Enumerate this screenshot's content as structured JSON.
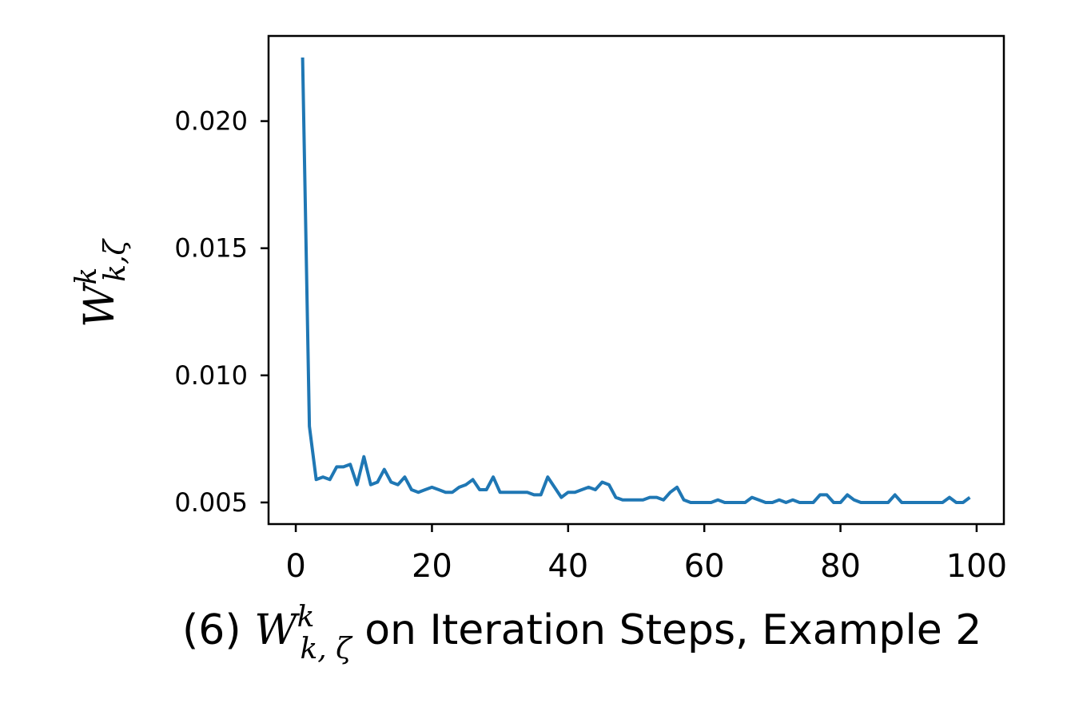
{
  "chart_data": {
    "type": "line",
    "ylabel": {
      "base": "W",
      "sup": "k",
      "sub": "k,ζ"
    },
    "caption": {
      "prefix": "(6) ",
      "math_base": "W",
      "math_sup": "k",
      "math_sub": "k, ζ",
      "suffix": " on Iteration Steps, Example 2"
    },
    "xlim": [
      -4,
      104
    ],
    "ylim": [
      0.00415,
      0.02335
    ],
    "xticks": [
      0,
      20,
      40,
      60,
      80,
      100
    ],
    "xtick_labels": [
      "0",
      "20",
      "40",
      "60",
      "80",
      "100"
    ],
    "yticks": [
      0.005,
      0.01,
      0.015,
      0.02
    ],
    "ytick_labels": [
      "0.005",
      "0.010",
      "0.015",
      "0.020"
    ],
    "grid": false,
    "color": "#1f77b4",
    "series": [
      {
        "x": [
          1,
          2,
          3,
          4,
          5,
          6,
          7,
          8,
          9,
          10,
          11,
          12,
          13,
          14,
          15,
          16,
          17,
          18,
          19,
          20,
          21,
          22,
          23,
          24,
          25,
          26,
          27,
          28,
          29,
          30,
          31,
          32,
          33,
          34,
          35,
          36,
          37,
          38,
          39,
          40,
          41,
          42,
          43,
          44,
          45,
          46,
          47,
          48,
          49,
          50,
          51,
          52,
          53,
          54,
          55,
          56,
          57,
          58,
          59,
          60,
          61,
          62,
          63,
          64,
          65,
          66,
          67,
          68,
          69,
          70,
          71,
          72,
          73,
          74,
          75,
          76,
          77,
          78,
          79,
          80,
          81,
          82,
          83,
          84,
          85,
          86,
          87,
          88,
          89,
          90,
          91,
          92,
          93,
          94,
          95,
          96,
          97,
          98,
          99
        ],
        "y": [
          0.0225,
          0.008,
          0.0059,
          0.006,
          0.0059,
          0.0064,
          0.0064,
          0.0065,
          0.0057,
          0.0068,
          0.0057,
          0.0058,
          0.0063,
          0.0058,
          0.0057,
          0.006,
          0.0055,
          0.0054,
          0.0055,
          0.0056,
          0.0055,
          0.0054,
          0.0054,
          0.0056,
          0.0057,
          0.0059,
          0.0055,
          0.0055,
          0.006,
          0.0054,
          0.0054,
          0.0054,
          0.0054,
          0.0054,
          0.0053,
          0.0053,
          0.006,
          0.0056,
          0.0052,
          0.0054,
          0.0054,
          0.0055,
          0.0056,
          0.0055,
          0.0058,
          0.0057,
          0.0052,
          0.0051,
          0.0051,
          0.0051,
          0.0051,
          0.0052,
          0.0052,
          0.0051,
          0.0054,
          0.0056,
          0.0051,
          0.005,
          0.005,
          0.005,
          0.005,
          0.0051,
          0.005,
          0.005,
          0.005,
          0.005,
          0.0052,
          0.0051,
          0.005,
          0.005,
          0.0051,
          0.005,
          0.0051,
          0.005,
          0.005,
          0.005,
          0.0053,
          0.0053,
          0.005,
          0.005,
          0.0053,
          0.0051,
          0.005,
          0.005,
          0.005,
          0.005,
          0.005,
          0.0053,
          0.005,
          0.005,
          0.005,
          0.005,
          0.005,
          0.005,
          0.005,
          0.0052,
          0.005,
          0.005,
          0.0052
        ]
      }
    ]
  }
}
